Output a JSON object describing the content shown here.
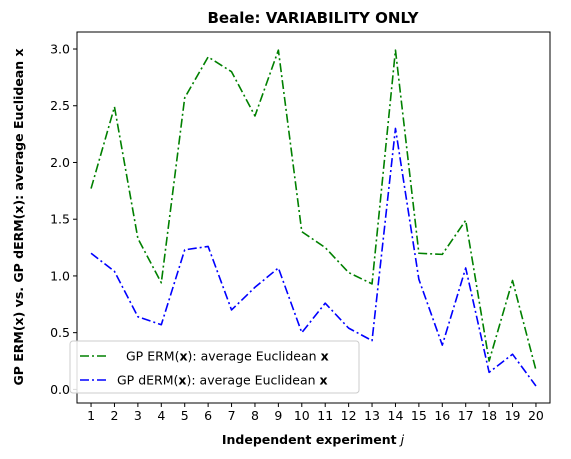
{
  "chart_data": {
    "type": "line",
    "title": "Beale: VARIABILITY ONLY",
    "xlabel": "Independent experiment",
    "xlabel_var": "j",
    "ylabel": "GP ERM(x) vs. GP dERM(x): average Euclidean x",
    "x": [
      1,
      2,
      3,
      4,
      5,
      6,
      7,
      8,
      9,
      10,
      11,
      12,
      13,
      14,
      15,
      16,
      17,
      18,
      19,
      20
    ],
    "x_tick_labels": [
      "1",
      "2",
      "3",
      "4",
      "5",
      "6",
      "7",
      "8",
      "9",
      "10",
      "11",
      "12",
      "13",
      "14",
      "15",
      "16",
      "17",
      "18",
      "19",
      "20"
    ],
    "y_ticks": [
      0.0,
      0.5,
      1.0,
      1.5,
      2.0,
      2.5,
      3.0
    ],
    "y_tick_labels": [
      "0.0",
      "0.5",
      "1.0",
      "1.5",
      "2.0",
      "2.5",
      "3.0"
    ],
    "xlim": [
      0.4,
      20.6
    ],
    "ylim": [
      -0.12,
      3.15
    ],
    "grid": false,
    "legend_position": "lower-left",
    "series": [
      {
        "name": "GP ERM(x): average Euclidean x",
        "legend_parts": [
          "GP ERM(",
          "x",
          "): average Euclidean ",
          "x"
        ],
        "color": "#008000",
        "style": "dash-dot",
        "values": [
          1.77,
          2.49,
          1.33,
          0.94,
          2.57,
          2.93,
          2.8,
          2.41,
          2.99,
          1.39,
          1.25,
          1.03,
          0.93,
          2.99,
          1.2,
          1.19,
          1.49,
          0.25,
          0.96,
          0.17
        ]
      },
      {
        "name": "GP dERM(x): average Euclidean x",
        "legend_parts": [
          "GP dERM(",
          "x",
          "): average Euclidean ",
          "x"
        ],
        "color": "#0000ff",
        "style": "dash-dot",
        "values": [
          1.2,
          1.04,
          0.64,
          0.57,
          1.23,
          1.26,
          0.7,
          0.9,
          1.07,
          0.5,
          0.76,
          0.54,
          0.43,
          2.3,
          0.97,
          0.39,
          1.07,
          0.15,
          0.31,
          0.03
        ]
      }
    ]
  }
}
